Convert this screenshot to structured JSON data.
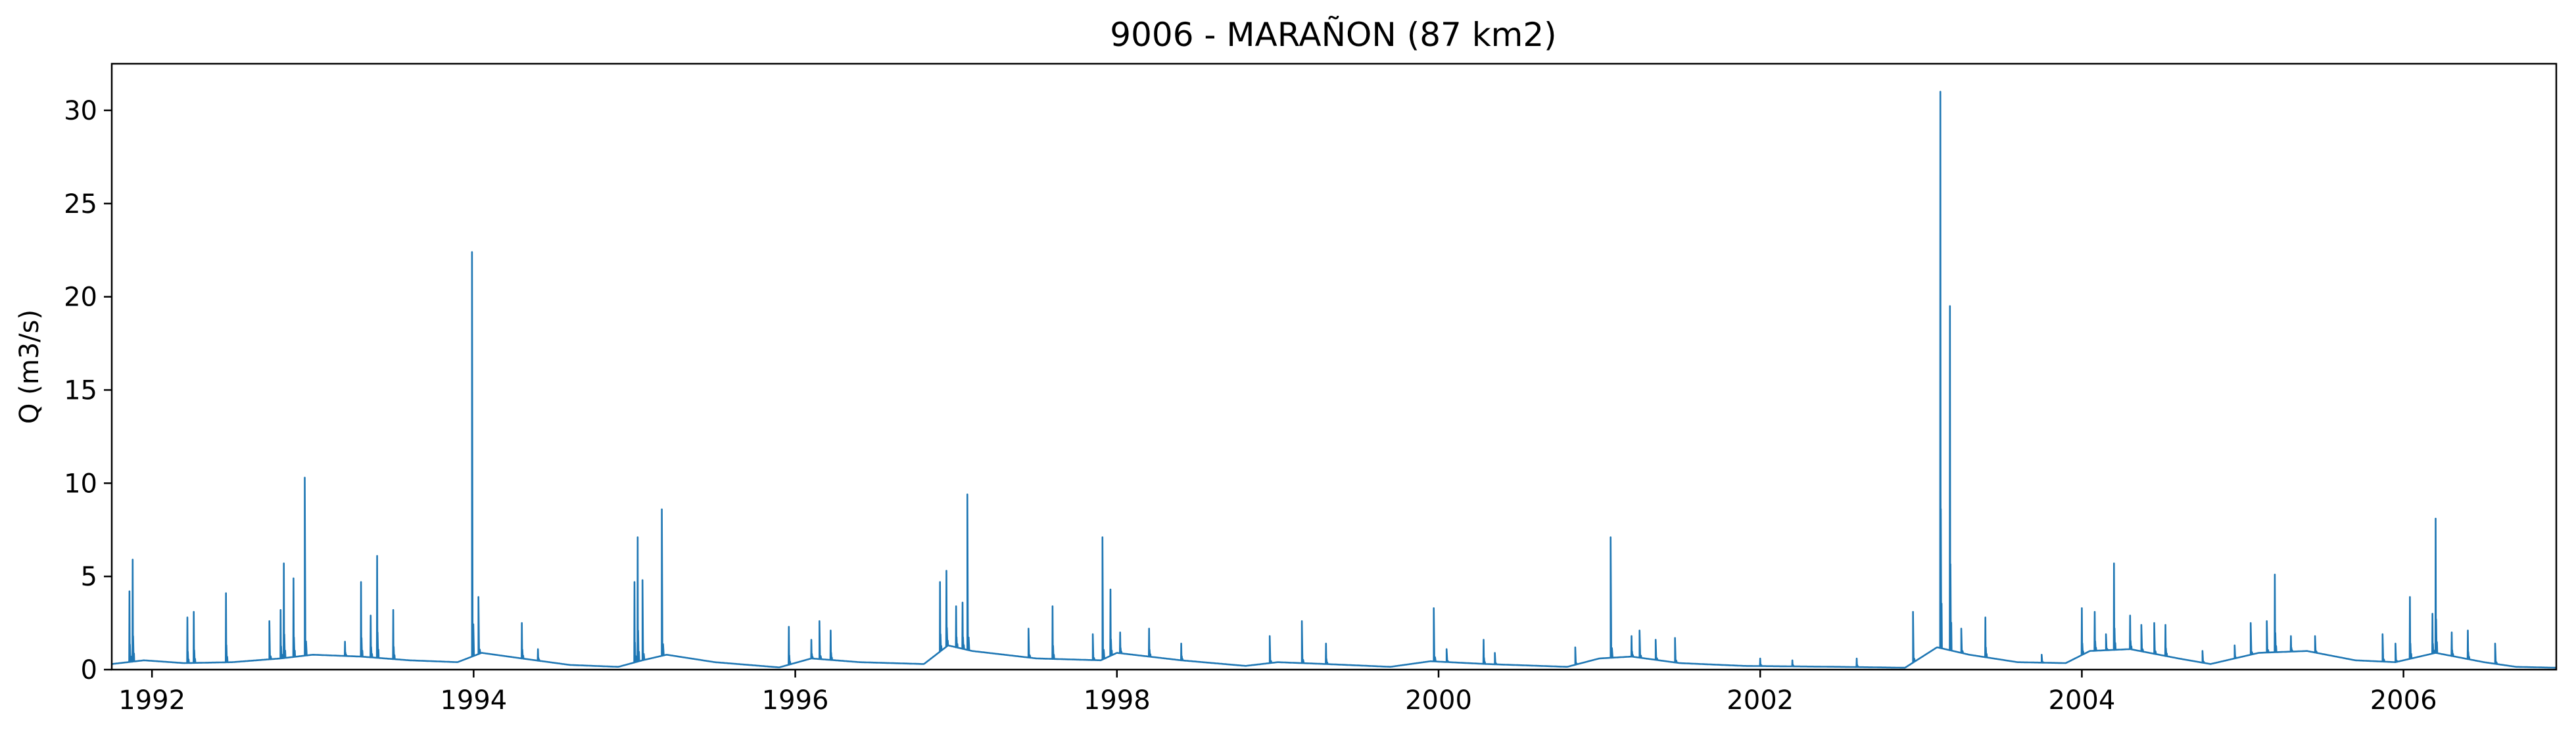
{
  "chart_data": {
    "type": "line",
    "title": "9006 - MARAÑON (87 km2)",
    "xlabel": "",
    "ylabel": "Q (m3/s)",
    "xlim": [
      1991.75,
      2006.95
    ],
    "ylim": [
      0,
      32.5
    ],
    "x_ticks": [
      1992,
      1994,
      1996,
      1998,
      2000,
      2002,
      2004,
      2006
    ],
    "y_ticks": [
      0,
      5,
      10,
      15,
      20,
      25,
      30
    ],
    "grid": false,
    "legend": "none",
    "color": "#1f77b4",
    "baseflow": [
      [
        1991.75,
        0.3
      ],
      [
        1991.95,
        0.5
      ],
      [
        1992.2,
        0.35
      ],
      [
        1992.5,
        0.4
      ],
      [
        1992.8,
        0.6
      ],
      [
        1993.0,
        0.8
      ],
      [
        1993.3,
        0.7
      ],
      [
        1993.6,
        0.5
      ],
      [
        1993.9,
        0.4
      ],
      [
        1994.05,
        0.9
      ],
      [
        1994.3,
        0.6
      ],
      [
        1994.6,
        0.25
      ],
      [
        1994.9,
        0.15
      ],
      [
        1995.05,
        0.5
      ],
      [
        1995.2,
        0.8
      ],
      [
        1995.5,
        0.4
      ],
      [
        1995.9,
        0.12
      ],
      [
        1996.1,
        0.6
      ],
      [
        1996.4,
        0.4
      ],
      [
        1996.8,
        0.3
      ],
      [
        1996.95,
        1.3
      ],
      [
        1997.1,
        1.0
      ],
      [
        1997.5,
        0.6
      ],
      [
        1997.9,
        0.5
      ],
      [
        1998.0,
        0.9
      ],
      [
        1998.4,
        0.5
      ],
      [
        1998.8,
        0.2
      ],
      [
        1999.0,
        0.4
      ],
      [
        1999.3,
        0.3
      ],
      [
        1999.7,
        0.15
      ],
      [
        1999.95,
        0.45
      ],
      [
        2000.3,
        0.3
      ],
      [
        2000.8,
        0.15
      ],
      [
        2001.0,
        0.6
      ],
      [
        2001.2,
        0.7
      ],
      [
        2001.5,
        0.35
      ],
      [
        2001.9,
        0.2
      ],
      [
        2002.5,
        0.15
      ],
      [
        2002.9,
        0.1
      ],
      [
        2003.1,
        1.2
      ],
      [
        2003.3,
        0.8
      ],
      [
        2003.6,
        0.4
      ],
      [
        2003.9,
        0.35
      ],
      [
        2004.05,
        1.0
      ],
      [
        2004.3,
        1.1
      ],
      [
        2004.6,
        0.6
      ],
      [
        2004.8,
        0.3
      ],
      [
        2005.1,
        0.9
      ],
      [
        2005.4,
        1.0
      ],
      [
        2005.7,
        0.5
      ],
      [
        2005.95,
        0.4
      ],
      [
        2006.2,
        0.9
      ],
      [
        2006.5,
        0.4
      ],
      [
        2006.7,
        0.15
      ],
      [
        2006.95,
        0.1
      ]
    ],
    "peaks": [
      [
        1991.86,
        4.2
      ],
      [
        1991.88,
        5.9
      ],
      [
        1992.22,
        2.8
      ],
      [
        1992.26,
        3.1
      ],
      [
        1992.46,
        4.1
      ],
      [
        1992.73,
        2.6
      ],
      [
        1992.8,
        3.2
      ],
      [
        1992.82,
        5.7
      ],
      [
        1992.88,
        4.9
      ],
      [
        1992.95,
        10.3
      ],
      [
        1993.2,
        1.5
      ],
      [
        1993.3,
        4.7
      ],
      [
        1993.36,
        2.9
      ],
      [
        1993.4,
        6.1
      ],
      [
        1993.5,
        3.2
      ],
      [
        1993.99,
        22.4
      ],
      [
        1994.03,
        3.9
      ],
      [
        1994.3,
        2.5
      ],
      [
        1994.4,
        1.1
      ],
      [
        1995.0,
        4.7
      ],
      [
        1995.02,
        7.1
      ],
      [
        1995.05,
        4.8
      ],
      [
        1995.17,
        8.6
      ],
      [
        1995.96,
        2.3
      ],
      [
        1996.1,
        1.6
      ],
      [
        1996.15,
        2.6
      ],
      [
        1996.22,
        2.1
      ],
      [
        1996.9,
        4.7
      ],
      [
        1996.94,
        5.3
      ],
      [
        1997.0,
        3.4
      ],
      [
        1997.04,
        3.6
      ],
      [
        1997.07,
        9.4
      ],
      [
        1997.45,
        2.2
      ],
      [
        1997.6,
        3.4
      ],
      [
        1997.85,
        1.9
      ],
      [
        1997.91,
        7.1
      ],
      [
        1997.96,
        4.3
      ],
      [
        1998.02,
        2.0
      ],
      [
        1998.2,
        2.2
      ],
      [
        1998.4,
        1.4
      ],
      [
        1998.95,
        1.8
      ],
      [
        1999.15,
        2.6
      ],
      [
        1999.3,
        1.4
      ],
      [
        1999.97,
        3.3
      ],
      [
        2000.05,
        1.1
      ],
      [
        2000.28,
        1.6
      ],
      [
        2000.35,
        0.9
      ],
      [
        2000.85,
        1.2
      ],
      [
        2001.07,
        7.1
      ],
      [
        2001.2,
        1.8
      ],
      [
        2001.25,
        2.1
      ],
      [
        2001.35,
        1.6
      ],
      [
        2001.47,
        1.7
      ],
      [
        2002.0,
        0.6
      ],
      [
        2002.2,
        0.5
      ],
      [
        2002.6,
        0.6
      ],
      [
        2002.95,
        3.1
      ],
      [
        2003.12,
        31.0
      ],
      [
        2003.18,
        19.5
      ],
      [
        2003.25,
        2.2
      ],
      [
        2003.4,
        2.8
      ],
      [
        2003.75,
        0.8
      ],
      [
        2004.0,
        3.3
      ],
      [
        2004.08,
        3.1
      ],
      [
        2004.15,
        1.9
      ],
      [
        2004.2,
        5.7
      ],
      [
        2004.3,
        2.9
      ],
      [
        2004.37,
        2.4
      ],
      [
        2004.45,
        2.5
      ],
      [
        2004.52,
        2.4
      ],
      [
        2004.75,
        1.0
      ],
      [
        2004.95,
        1.3
      ],
      [
        2005.05,
        2.5
      ],
      [
        2005.15,
        2.6
      ],
      [
        2005.2,
        5.1
      ],
      [
        2005.3,
        1.8
      ],
      [
        2005.45,
        1.8
      ],
      [
        2005.87,
        1.9
      ],
      [
        2005.95,
        1.4
      ],
      [
        2006.04,
        3.9
      ],
      [
        2006.18,
        3.0
      ],
      [
        2006.2,
        8.1
      ],
      [
        2006.3,
        2.0
      ],
      [
        2006.4,
        2.1
      ],
      [
        2006.57,
        1.4
      ]
    ]
  }
}
